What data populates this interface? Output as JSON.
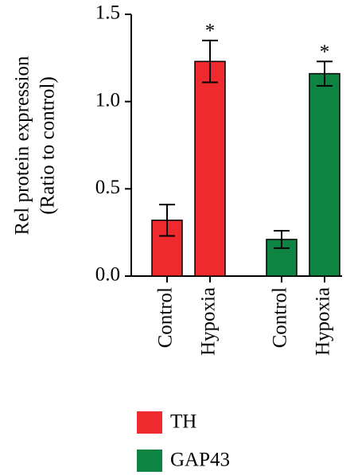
{
  "chart_data": {
    "type": "bar",
    "ylabel": [
      "Rel protein expression",
      "(Ratio to control)"
    ],
    "categories": [
      "Control",
      "Hypoxia",
      "Control",
      "Hypoxia"
    ],
    "series": [
      {
        "name": "TH",
        "color": "#ee2a2e",
        "values": [
          0.32,
          1.23,
          null,
          null
        ],
        "errors": [
          0.09,
          0.12,
          null,
          null
        ],
        "annotations": [
          null,
          "*",
          null,
          null
        ]
      },
      {
        "name": "GAP43",
        "color": "#0e8443",
        "values": [
          null,
          null,
          0.21,
          1.16
        ],
        "errors": [
          null,
          null,
          0.05,
          0.07
        ],
        "annotations": [
          null,
          null,
          null,
          "*"
        ]
      }
    ],
    "ylim": [
      0,
      1.5
    ],
    "yticks": [
      {
        "value": 0,
        "label": "0.0"
      },
      0.5,
      {
        "value": 1,
        "label": "1.0"
      },
      1.5
    ],
    "legend": "bottom"
  }
}
